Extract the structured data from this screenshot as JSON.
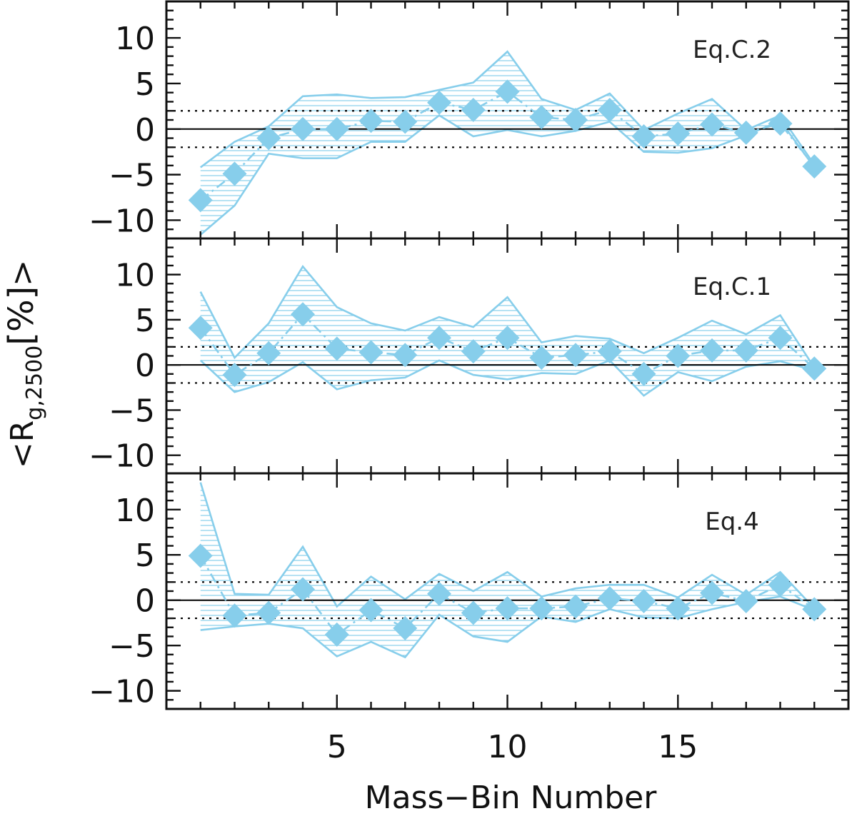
{
  "chart_data": {
    "type": "line",
    "title": "",
    "xlabel": "Mass−Bin Number",
    "ylabel": "<R_g,2500[%]>",
    "ylabel_parts": {
      "open": "<R",
      "sub": "g,2500",
      "unit": "[%]",
      "close": ">"
    },
    "xlim": [
      0,
      20
    ],
    "ylim": [
      -12,
      14
    ],
    "x_ticks": [
      5,
      10,
      15
    ],
    "x_tick_labels": [
      "5",
      "10",
      "15"
    ],
    "y_ticks": [
      -10,
      -5,
      0,
      5,
      10
    ],
    "y_tick_labels": [
      "−10",
      "−5",
      "0",
      "5",
      "10"
    ],
    "reference_lines": {
      "solid": 0,
      "dotted": [
        2,
        -2
      ]
    },
    "colors": {
      "band": "#87ceeb",
      "marker": "#87ceeb",
      "axes": "#111111"
    },
    "panels": [
      {
        "label": "Eq.C.2",
        "x": [
          1,
          2,
          3,
          4,
          5,
          6,
          7,
          8,
          9,
          10,
          11,
          12,
          13,
          14,
          15,
          16,
          17,
          18,
          19
        ],
        "mean": [
          -7.8,
          -4.9,
          -1.0,
          0.0,
          0.0,
          0.9,
          0.8,
          2.9,
          2.1,
          4.1,
          1.3,
          1.0,
          2.1,
          -0.8,
          -0.5,
          0.5,
          -0.4,
          0.6,
          -4.1
        ],
        "upper": [
          -4.2,
          -1.4,
          0.3,
          3.6,
          3.8,
          3.4,
          3.5,
          4.3,
          5.1,
          8.5,
          3.3,
          2.1,
          3.9,
          -0.1,
          1.7,
          3.3,
          -0.1,
          1.5,
          -3.9
        ],
        "lower": [
          -11.6,
          -8.4,
          -2.7,
          -3.2,
          -3.2,
          -1.4,
          -1.4,
          1.5,
          -0.8,
          -0.1,
          -0.8,
          -0.2,
          0.8,
          -2.5,
          -2.6,
          -2.1,
          -0.7,
          0.9,
          -4.2
        ]
      },
      {
        "label": "Eq.C.1",
        "x": [
          1,
          2,
          3,
          4,
          5,
          6,
          7,
          8,
          9,
          10,
          11,
          12,
          13,
          14,
          15,
          16,
          17,
          18,
          19
        ],
        "mean": [
          4.1,
          -1.1,
          1.3,
          5.6,
          1.8,
          1.4,
          1.1,
          3.0,
          1.5,
          3.0,
          0.8,
          1.1,
          1.5,
          -1.0,
          1.0,
          1.6,
          1.6,
          3.0,
          -0.4
        ],
        "upper": [
          8.1,
          0.8,
          4.6,
          10.9,
          6.4,
          4.6,
          3.8,
          5.3,
          4.2,
          7.5,
          2.5,
          3.2,
          2.9,
          1.3,
          3.0,
          4.9,
          3.4,
          5.5,
          -0.3
        ],
        "lower": [
          0.5,
          -3.0,
          -1.9,
          0.3,
          -2.7,
          -1.7,
          -1.4,
          0.5,
          -1.1,
          -1.6,
          -0.9,
          -1.0,
          0.5,
          -3.4,
          -0.8,
          -1.8,
          -0.2,
          0.4,
          -0.6
        ]
      },
      {
        "label": "Eq.4",
        "x": [
          1,
          2,
          3,
          4,
          5,
          6,
          7,
          8,
          9,
          10,
          11,
          12,
          13,
          14,
          15,
          16,
          17,
          18,
          19
        ],
        "mean": [
          4.9,
          -1.7,
          -1.4,
          1.2,
          -3.8,
          -1.1,
          -3.1,
          0.7,
          -1.4,
          -0.9,
          -0.9,
          -0.7,
          0.2,
          -0.1,
          -0.9,
          0.8,
          -0.1,
          1.7,
          -1.0
        ],
        "upper": [
          13.0,
          0.7,
          0.6,
          5.9,
          -0.7,
          2.6,
          0.1,
          2.9,
          1.0,
          3.1,
          0.4,
          1.3,
          1.7,
          1.7,
          0.3,
          2.8,
          0.6,
          3.1,
          -0.9
        ],
        "lower": [
          -3.3,
          -2.9,
          -2.6,
          -3.1,
          -6.2,
          -4.6,
          -6.3,
          -1.6,
          -4.0,
          -4.6,
          -1.8,
          -2.4,
          -1.0,
          -1.9,
          -2.0,
          -1.0,
          -0.2,
          0.4,
          -1.1
        ]
      }
    ]
  }
}
